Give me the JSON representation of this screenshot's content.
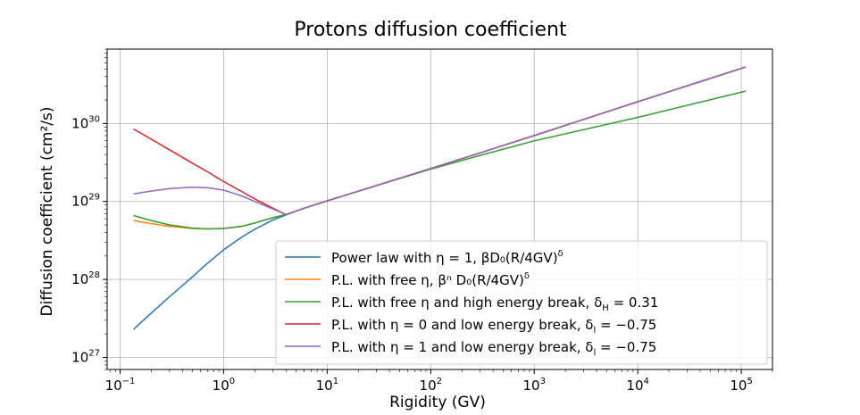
{
  "chart_data": {
    "type": "line",
    "title": "Protons diffusion coefficient",
    "xlabel": "Rigidity (GV)",
    "ylabel": "Diffusion coefficient (cm²/s)",
    "xscale": "log",
    "yscale": "log",
    "xlim": [
      0.075,
      200000
    ],
    "ylim": [
      7e+26,
      9e+30
    ],
    "grid": true,
    "legend_position": "lower-right",
    "x_ticks": [
      {
        "base": "10",
        "exp": "−1",
        "value": 0.1
      },
      {
        "base": "10",
        "exp": "0",
        "value": 1
      },
      {
        "base": "10",
        "exp": "1",
        "value": 10
      },
      {
        "base": "10",
        "exp": "2",
        "value": 100
      },
      {
        "base": "10",
        "exp": "3",
        "value": 1000
      },
      {
        "base": "10",
        "exp": "4",
        "value": 10000
      },
      {
        "base": "10",
        "exp": "5",
        "value": 100000
      }
    ],
    "y_ticks": [
      {
        "base": "10",
        "exp": "27",
        "value": 1e+27
      },
      {
        "base": "10",
        "exp": "28",
        "value": 1e+28
      },
      {
        "base": "10",
        "exp": "29",
        "value": 1e+29
      },
      {
        "base": "10",
        "exp": "30",
        "value": 1e+30
      }
    ],
    "series": [
      {
        "name": "Power law with η = 1, βD₀(R/4GV)^δ",
        "legend": {
          "main": "Power law with η = 1, βD₀(R/4GV)",
          "sup": "δ",
          "sub": ""
        },
        "color": "#1f77b4",
        "x": [
          0.135,
          0.2,
          0.3,
          0.5,
          0.7,
          1.0,
          1.5,
          2.0,
          3.0,
          4.0,
          6.0,
          10,
          30,
          100,
          300,
          1000,
          10000,
          110000
        ],
        "y": [
          2.3e+27,
          3.7e+27,
          6e+27,
          1.08e+28,
          1.62e+28,
          2.4e+28,
          3.5e+28,
          4.4e+28,
          5.8e+28,
          6.7e+28,
          8.2e+28,
          1.02e+29,
          1.6e+29,
          2.65e+29,
          4.2e+29,
          7e+29,
          1.9e+30,
          5.3e+30
        ]
      },
      {
        "name": "P.L. with free η, β^ηD₀(R/4GV)^δ",
        "legend": {
          "main": "P.L. with free η, βⁿ D₀(R/4GV)",
          "sup": "δ",
          "sub": ""
        },
        "color": "#ff7f0e",
        "x": [
          0.135,
          0.2,
          0.3,
          0.5,
          0.7,
          1.0,
          1.5,
          2.0,
          3.0,
          4.0,
          6.0,
          10,
          30,
          100,
          300,
          1000,
          10000,
          110000
        ],
        "y": [
          5.7e+28,
          5.2e+28,
          4.8e+28,
          4.5e+28,
          4.45e+28,
          4.5e+28,
          4.8e+28,
          5.3e+28,
          6.2e+28,
          6.8e+28,
          8.2e+28,
          1.02e+29,
          1.6e+29,
          2.65e+29,
          4.2e+29,
          7e+29,
          1.9e+30,
          5.3e+30
        ]
      },
      {
        "name": "P.L. with free η and high energy break, δ_H = 0.31",
        "legend": {
          "main": "P.L. with free η and high energy break, δ",
          "sup": "",
          "sub": "H",
          "tail": " = 0.31"
        },
        "color": "#2ca02c",
        "x": [
          0.135,
          0.2,
          0.3,
          0.5,
          0.7,
          1.0,
          1.5,
          2.0,
          3.0,
          4.0,
          6.0,
          10,
          30,
          100,
          300,
          1000,
          10000,
          110000
        ],
        "y": [
          6.6e+28,
          5.7e+28,
          5e+28,
          4.55e+28,
          4.45e+28,
          4.5e+28,
          4.8e+28,
          5.3e+28,
          6.2e+28,
          6.8e+28,
          8.2e+28,
          1.02e+29,
          1.6e+29,
          2.6e+29,
          3.9e+29,
          6e+29,
          1.2e+30,
          2.6e+30
        ]
      },
      {
        "name": "P.L. with η = 0 and low energy break, δ_l = −0.75",
        "legend": {
          "main": "P.L. with η = 0 and low energy break, δ",
          "sup": "",
          "sub": "l",
          "tail": " = −0.75"
        },
        "color": "#d62728",
        "x": [
          0.135,
          0.3,
          0.5,
          0.7,
          1.0,
          1.5,
          2.0,
          3.0,
          4.0,
          6.0,
          10,
          30,
          100,
          300,
          1000,
          10000,
          110000
        ],
        "y": [
          8.5e+29,
          4.6e+29,
          3.1e+29,
          2.4e+29,
          1.8e+29,
          1.34e+29,
          1.08e+29,
          8.2e+28,
          6.8e+28,
          8.2e+28,
          1.02e+29,
          1.6e+29,
          2.65e+29,
          4.2e+29,
          7e+29,
          1.9e+30,
          5.3e+30
        ]
      },
      {
        "name": "P.L. with η = 1 and low energy break, δ_l = −0.75",
        "legend": {
          "main": "P.L. with η = 1 and low energy break, δ",
          "sup": "",
          "sub": "l",
          "tail": " = −0.75"
        },
        "color": "#9467bd",
        "x": [
          0.135,
          0.2,
          0.3,
          0.5,
          0.7,
          1.0,
          1.5,
          2.0,
          3.0,
          4.0,
          6.0,
          10,
          30,
          100,
          300,
          1000,
          10000,
          110000
        ],
        "y": [
          1.25e+29,
          1.36e+29,
          1.46e+29,
          1.52e+29,
          1.5e+29,
          1.4e+29,
          1.18e+29,
          1e+29,
          8e+28,
          6.8e+28,
          8.2e+28,
          1.02e+29,
          1.6e+29,
          2.65e+29,
          4.2e+29,
          7e+29,
          1.9e+30,
          5.3e+30
        ]
      }
    ]
  }
}
